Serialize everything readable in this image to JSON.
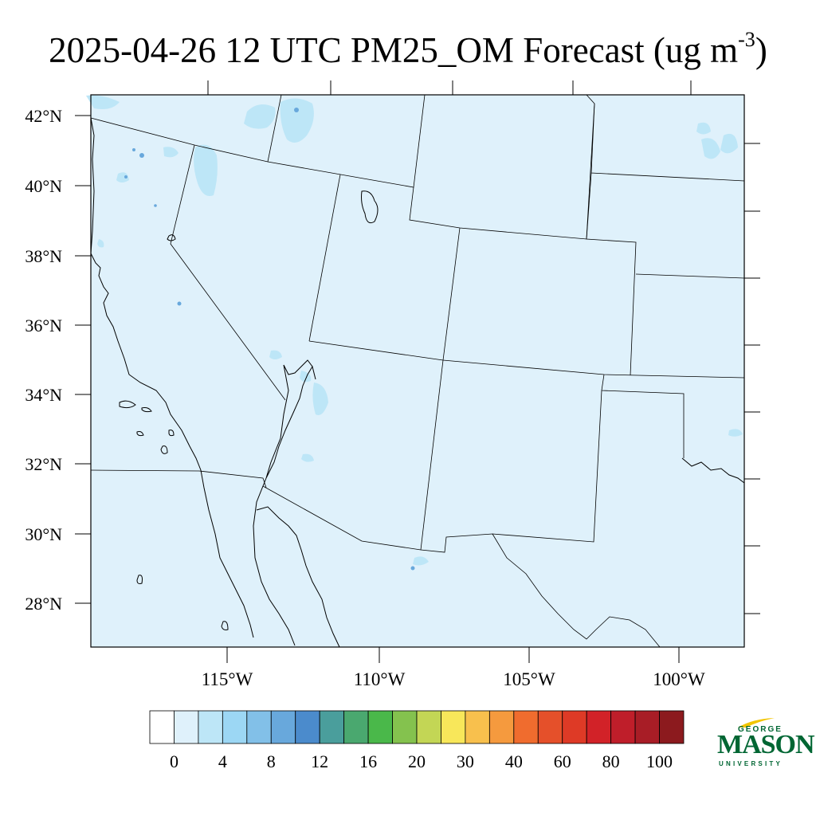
{
  "title": {
    "main": "2025-04-26 12 UTC PM25_OM Forecast (ug m",
    "exponent": "-3",
    "close": ")"
  },
  "map": {
    "background_color": "#dff1fb",
    "lat_labels": [
      "42°N",
      "40°N",
      "38°N",
      "36°N",
      "34°N",
      "32°N",
      "30°N",
      "28°N"
    ],
    "lon_labels": [
      "115°W",
      "110°W",
      "105°W",
      "100°W"
    ]
  },
  "colorbar": {
    "colors": [
      "#ffffff",
      "#dff1fb",
      "#bde6f7",
      "#9cd7f4",
      "#82c0e8",
      "#68a8dc",
      "#4b8bcc",
      "#4a9e9c",
      "#4aa86f",
      "#4ab84a",
      "#84c24e",
      "#c3d655",
      "#f8e75a",
      "#f8c04d",
      "#f59a3e",
      "#f06c2e",
      "#e5502a",
      "#de3a26",
      "#d22228",
      "#bf1e2a",
      "#a81d26",
      "#8c1a1e"
    ],
    "labels": [
      "0",
      "4",
      "8",
      "12",
      "16",
      "20",
      "30",
      "40",
      "60",
      "80",
      "100"
    ]
  },
  "logo": {
    "line1": "GEORGE",
    "line2": "MASON",
    "line3": "UNIVERSITY"
  }
}
